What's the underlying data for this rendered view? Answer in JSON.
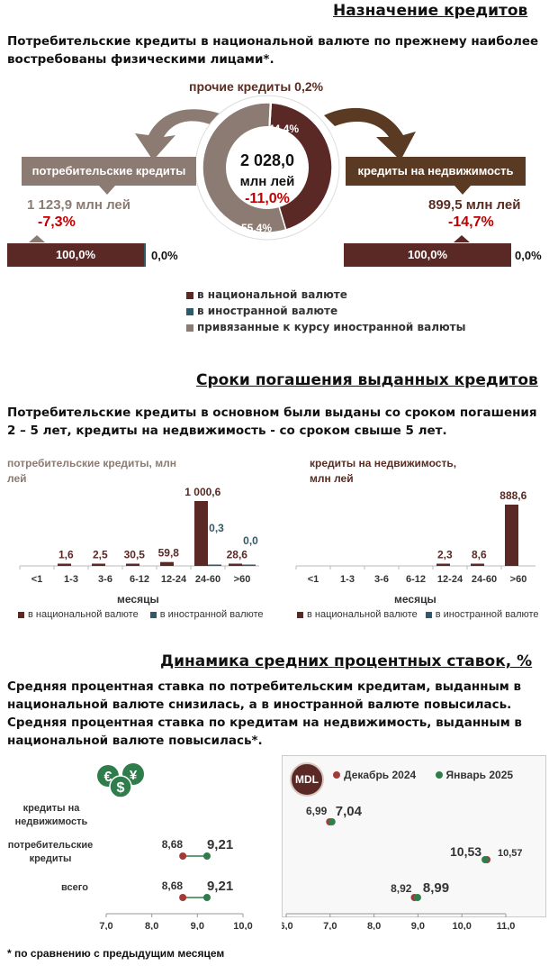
{
  "colors": {
    "national": "#5a2926",
    "foreign": "#2f5a68",
    "pegged": "#8c7b72",
    "red": "#c00000",
    "dec2024": "#a33a3a",
    "jan2025": "#2e7d4a"
  },
  "section1": {
    "title": "Назначение кредитов",
    "lead": "Потребительские кредиты в национальной валюте по прежнему наиболее востребованы физическими лицами*.",
    "other_credits": "прочие кредиты 0,2%",
    "donut": {
      "total": "2 028,0",
      "unit": "млн лей",
      "change": "-11,0%",
      "slice_realestate_label": "44,4%",
      "slice_consumer_label": "55,4%",
      "shares": [
        44.4,
        55.4,
        0.2
      ]
    },
    "consumer": {
      "label": "потребительские кредиты",
      "amount": "1 123,9 млн лей",
      "change": "-7,3%",
      "bar_national": "100,0%",
      "bar_foreign": "0,0%"
    },
    "realestate": {
      "label": "кредиты на недвижимость",
      "amount": "899,5 млн лей",
      "change": "-14,7%",
      "bar_national": "100,0%",
      "bar_foreign": "0,0%"
    },
    "legend": [
      "в национальной валюте",
      "в иностранной валюте",
      "привязанные к курсу иностранной валюты"
    ]
  },
  "section2": {
    "title": "Сроки погашения выданных кредитов",
    "lead": "Потребительские кредиты в основном были выданы со сроком погашения 2 – 5 лет, кредиты на недвижимость - со сроком свыше 5 лет.",
    "xlabel": "месяцы",
    "legend_national": "в национальной валюте",
    "legend_foreign": "в иностранной валюте"
  },
  "section3": {
    "title": "Динамика средних процентных ставок, %",
    "lead": "Средняя процентная ставка по потребительским кредитам, выданным в национальной валюте снизилась, а в  иностранной валюте повысилась. Средняя процентная ставка по кредитам на недвижимость, выданным в национальной валюте повысилась*.",
    "mdl_badge": "MDL",
    "legend_dec": "Декабрь 2024",
    "legend_jan": "Январь 2025",
    "row_labels": [
      "кредиты на недвижимость",
      "потребительские кредиты",
      "всего"
    ],
    "footnote": "* по сравнению с предыдущим месяцем"
  },
  "chart_data": [
    {
      "type": "bar",
      "title": "потребительские кредиты, млн лей",
      "xlabel": "месяцы",
      "categories": [
        "<1",
        "1-3",
        "3-6",
        "6-12",
        "12-24",
        "24-60",
        ">60"
      ],
      "series": [
        {
          "name": "в национальной валюте",
          "values": [
            0,
            1.6,
            2.5,
            30.5,
            59.8,
            1000.6,
            28.6
          ],
          "labels": [
            "",
            "1,6",
            "2,5",
            "30,5",
            "59,8",
            "1 000,6",
            "28,6"
          ]
        },
        {
          "name": "в иностранной валюте",
          "values": [
            0,
            0,
            0,
            0,
            0,
            0.3,
            0.0
          ],
          "labels": [
            "",
            "",
            "",
            "",
            "",
            "0,3",
            "0,0"
          ]
        }
      ],
      "ylim": [
        0,
        1000.6
      ]
    },
    {
      "type": "bar",
      "title": "кредиты на недвижимость, млн лей",
      "xlabel": "месяцы",
      "categories": [
        "<1",
        "1-3",
        "3-6",
        "6-12",
        "12-24",
        "24-60",
        ">60"
      ],
      "series": [
        {
          "name": "в национальной валюте",
          "values": [
            0,
            0,
            0,
            0,
            2.3,
            8.6,
            888.6
          ],
          "labels": [
            "",
            "",
            "",
            "",
            "2,3",
            "8,6",
            "888,6"
          ]
        },
        {
          "name": "в иностранной валюте",
          "values": [
            0,
            0,
            0,
            0,
            0,
            0,
            0
          ],
          "labels": [
            "",
            "",
            "",
            "",
            "",
            "",
            ""
          ]
        }
      ],
      "ylim": [
        0,
        888.6
      ]
    },
    {
      "type": "scatter",
      "title": "",
      "categories": [
        "кредиты на недвижимость",
        "потребительские кредиты",
        "всего"
      ],
      "xlim": [
        7.0,
        10.0
      ],
      "x_ticks": [
        "7,0",
        "8,0",
        "9,0",
        "10,0"
      ],
      "series": [
        {
          "name": "Декабрь 2024",
          "values": [
            null,
            8.68,
            8.68
          ],
          "labels": [
            "",
            "8,68",
            "8,68"
          ]
        },
        {
          "name": "Январь 2025",
          "values": [
            null,
            9.21,
            9.21
          ],
          "labels": [
            "",
            "9,21",
            "9,21"
          ]
        }
      ]
    },
    {
      "type": "scatter",
      "title": "",
      "categories": [
        "кредиты на недвижимость",
        "потребительские кредиты",
        "всего"
      ],
      "xlim": [
        6.0,
        11.0
      ],
      "x_ticks": [
        "6,0",
        "7,0",
        "8,0",
        "9,0",
        "10,0",
        "11,0"
      ],
      "series": [
        {
          "name": "Декабрь 2024",
          "values": [
            6.99,
            10.57,
            8.92
          ],
          "labels": [
            "6,99",
            "10,57",
            "8,92"
          ]
        },
        {
          "name": "Январь 2025",
          "values": [
            7.04,
            10.53,
            8.99
          ],
          "labels": [
            "7,04",
            "10,53",
            "8,99"
          ]
        }
      ]
    }
  ]
}
